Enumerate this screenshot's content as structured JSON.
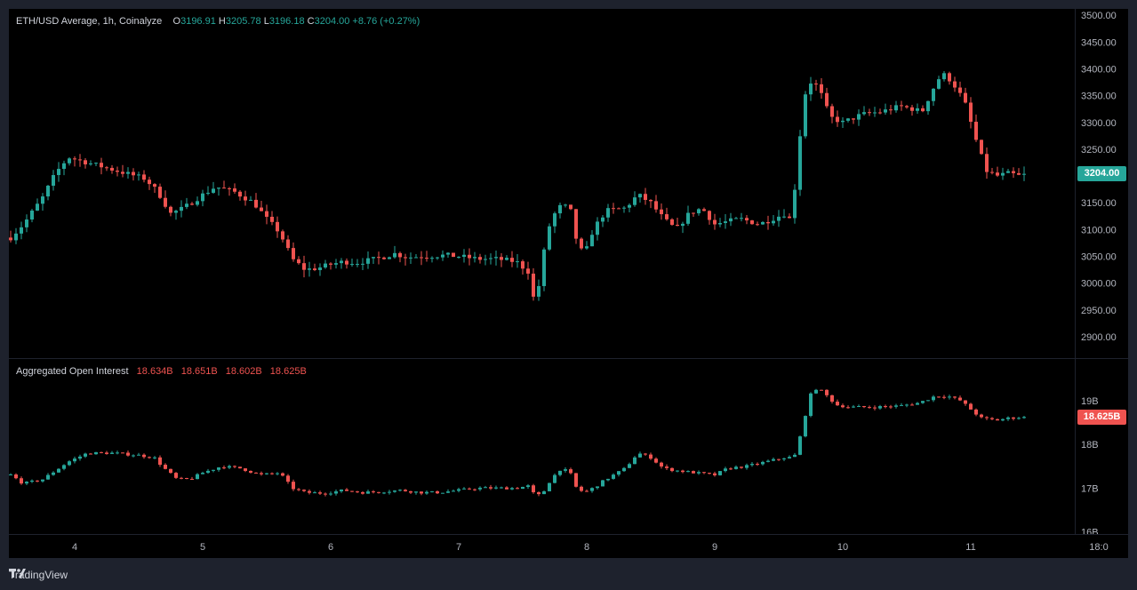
{
  "colors": {
    "up": "#26a69a",
    "down": "#ef5350",
    "background": "#000000",
    "chrome": "#1e222d"
  },
  "price_legend": {
    "symbol": "ETH/USD Average, 1h, Coinalyze",
    "o_label": "O",
    "o_value": "3196.91",
    "h_label": "H",
    "h_value": "3205.78",
    "l_label": "L",
    "l_value": "3196.18",
    "c_label": "C",
    "c_value": "3204.00",
    "change": "+8.76 (+0.27%)"
  },
  "oi_legend": {
    "title": "Aggregated Open Interest",
    "v1": "18.634B",
    "v2": "18.651B",
    "v3": "18.602B",
    "v4": "18.625B"
  },
  "price_axis_labels": [
    "3500.00",
    "3450.00",
    "3400.00",
    "3350.00",
    "3300.00",
    "3250.00",
    "3200.00",
    "3150.00",
    "3100.00",
    "3050.00",
    "3000.00",
    "2950.00",
    "2900.00"
  ],
  "price_last_label": "3204.00",
  "oi_axis_labels": [
    "19B",
    "18B",
    "17B",
    "16B"
  ],
  "oi_last_label": "18.625B",
  "time_labels": [
    "4",
    "5",
    "6",
    "7",
    "8",
    "9",
    "10",
    "11",
    "18:0"
  ],
  "brand": "TradingView",
  "chart_data": [
    {
      "type": "candlestick",
      "title": "ETH/USD Average, 1h, Coinalyze",
      "ylim": [
        2860,
        3512
      ],
      "x_ticks": [
        4,
        5,
        6,
        7,
        8,
        9,
        10,
        11
      ],
      "x_range": [
        3.5,
        11.8
      ],
      "anchors": [
        [
          3.5,
          3085
        ],
        [
          3.6,
          3110
        ],
        [
          3.75,
          3160
        ],
        [
          3.85,
          3205
        ],
        [
          3.95,
          3235
        ],
        [
          4.1,
          3225
        ],
        [
          4.25,
          3215
        ],
        [
          4.4,
          3205
        ],
        [
          4.55,
          3195
        ],
        [
          4.65,
          3170
        ],
        [
          4.75,
          3130
        ],
        [
          4.85,
          3140
        ],
        [
          5.0,
          3165
        ],
        [
          5.1,
          3180
        ],
        [
          5.25,
          3170
        ],
        [
          5.4,
          3150
        ],
        [
          5.5,
          3120
        ],
        [
          5.6,
          3095
        ],
        [
          5.7,
          3045
        ],
        [
          5.8,
          3025
        ],
        [
          5.9,
          3028
        ],
        [
          6.0,
          3035
        ],
        [
          6.1,
          3040
        ],
        [
          6.2,
          3038
        ],
        [
          6.35,
          3045
        ],
        [
          6.5,
          3055
        ],
        [
          6.6,
          3048
        ],
        [
          6.7,
          3050
        ],
        [
          6.9,
          3052
        ],
        [
          7.0,
          3050
        ],
        [
          7.15,
          3045
        ],
        [
          7.3,
          3045
        ],
        [
          7.45,
          3040
        ],
        [
          7.55,
          3020
        ],
        [
          7.6,
          2950
        ],
        [
          7.65,
          3040
        ],
        [
          7.72,
          3120
        ],
        [
          7.8,
          3145
        ],
        [
          7.87,
          3140
        ],
        [
          7.92,
          3080
        ],
        [
          7.98,
          3050
        ],
        [
          8.05,
          3100
        ],
        [
          8.15,
          3135
        ],
        [
          8.3,
          3140
        ],
        [
          8.4,
          3165
        ],
        [
          8.5,
          3150
        ],
        [
          8.6,
          3120
        ],
        [
          8.7,
          3100
        ],
        [
          8.8,
          3130
        ],
        [
          8.9,
          3140
        ],
        [
          9.0,
          3110
        ],
        [
          9.1,
          3115
        ],
        [
          9.2,
          3120
        ],
        [
          9.35,
          3110
        ],
        [
          9.45,
          3120
        ],
        [
          9.55,
          3130
        ],
        [
          9.6,
          3115
        ],
        [
          9.65,
          3240
        ],
        [
          9.7,
          3350
        ],
        [
          9.76,
          3380
        ],
        [
          9.82,
          3360
        ],
        [
          9.9,
          3310
        ],
        [
          10.0,
          3300
        ],
        [
          10.15,
          3315
        ],
        [
          10.3,
          3320
        ],
        [
          10.45,
          3330
        ],
        [
          10.55,
          3325
        ],
        [
          10.62,
          3320
        ],
        [
          10.68,
          3350
        ],
        [
          10.74,
          3380
        ],
        [
          10.8,
          3390
        ],
        [
          10.87,
          3370
        ],
        [
          10.95,
          3340
        ],
        [
          11.0,
          3300
        ],
        [
          11.05,
          3260
        ],
        [
          11.12,
          3210
        ],
        [
          11.2,
          3200
        ],
        [
          11.3,
          3205
        ],
        [
          11.38,
          3200
        ],
        [
          11.42,
          3204
        ]
      ]
    },
    {
      "type": "bar",
      "title": "Aggregated Open Interest",
      "ylim": [
        15.95,
        19.95
      ],
      "x_range": [
        3.5,
        11.8
      ],
      "anchors": [
        [
          3.5,
          17.3
        ],
        [
          3.6,
          17.1
        ],
        [
          3.75,
          17.2
        ],
        [
          3.85,
          17.4
        ],
        [
          3.95,
          17.6
        ],
        [
          4.1,
          17.8
        ],
        [
          4.3,
          17.8
        ],
        [
          4.5,
          17.75
        ],
        [
          4.62,
          17.7
        ],
        [
          4.7,
          17.45
        ],
        [
          4.8,
          17.2
        ],
        [
          4.9,
          17.2
        ],
        [
          5.0,
          17.35
        ],
        [
          5.15,
          17.5
        ],
        [
          5.3,
          17.45
        ],
        [
          5.45,
          17.3
        ],
        [
          5.6,
          17.35
        ],
        [
          5.7,
          17.0
        ],
        [
          5.8,
          16.9
        ],
        [
          5.95,
          16.88
        ],
        [
          6.1,
          16.95
        ],
        [
          6.25,
          16.9
        ],
        [
          6.4,
          16.92
        ],
        [
          6.55,
          16.95
        ],
        [
          6.7,
          16.9
        ],
        [
          6.85,
          16.9
        ],
        [
          7.0,
          16.95
        ],
        [
          7.15,
          17.0
        ],
        [
          7.3,
          17.0
        ],
        [
          7.45,
          17.0
        ],
        [
          7.55,
          17.05
        ],
        [
          7.6,
          16.8
        ],
        [
          7.66,
          16.9
        ],
        [
          7.72,
          17.2
        ],
        [
          7.8,
          17.45
        ],
        [
          7.87,
          17.35
        ],
        [
          7.92,
          17.0
        ],
        [
          7.98,
          16.9
        ],
        [
          8.05,
          17.0
        ],
        [
          8.15,
          17.2
        ],
        [
          8.3,
          17.45
        ],
        [
          8.4,
          17.8
        ],
        [
          8.5,
          17.7
        ],
        [
          8.6,
          17.45
        ],
        [
          8.7,
          17.4
        ],
        [
          8.85,
          17.35
        ],
        [
          9.0,
          17.3
        ],
        [
          9.1,
          17.45
        ],
        [
          9.25,
          17.5
        ],
        [
          9.4,
          17.6
        ],
        [
          9.55,
          17.7
        ],
        [
          9.62,
          17.7
        ],
        [
          9.68,
          18.3
        ],
        [
          9.74,
          19.1
        ],
        [
          9.8,
          19.3
        ],
        [
          9.88,
          19.1
        ],
        [
          9.95,
          18.9
        ],
        [
          10.05,
          18.85
        ],
        [
          10.25,
          18.85
        ],
        [
          10.45,
          18.88
        ],
        [
          10.6,
          18.95
        ],
        [
          10.72,
          19.1
        ],
        [
          10.82,
          19.1
        ],
        [
          10.92,
          19.0
        ],
        [
          11.0,
          18.8
        ],
        [
          11.08,
          18.6
        ],
        [
          11.2,
          18.55
        ],
        [
          11.3,
          18.6
        ],
        [
          11.42,
          18.625
        ]
      ]
    }
  ]
}
